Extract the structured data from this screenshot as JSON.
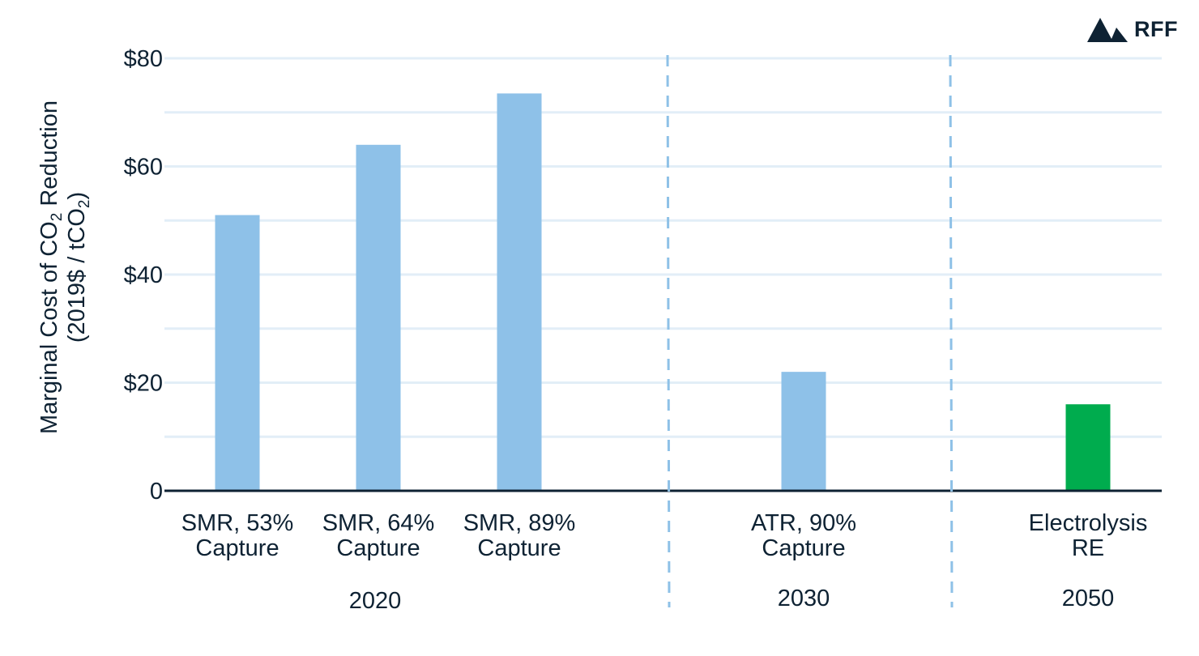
{
  "chart_data": {
    "type": "bar",
    "categories": [
      [
        "SMR, 53%",
        "Capture"
      ],
      [
        "SMR, 64%",
        "Capture"
      ],
      [
        "SMR, 89%",
        "Capture"
      ],
      [
        "ATR, 90%",
        "Capture"
      ],
      [
        "Electrolysis",
        "RE"
      ]
    ],
    "values": [
      51,
      64,
      73.5,
      22,
      16
    ],
    "bar_colors": [
      "#8ec1e8",
      "#8ec1e8",
      "#8ec1e8",
      "#8ec1e8",
      "#00ac4e"
    ],
    "groups": [
      {
        "label": "2020",
        "categories": [
          0,
          1,
          2
        ]
      },
      {
        "label": "2030",
        "categories": [
          3
        ]
      },
      {
        "label": "2050",
        "categories": [
          4
        ]
      }
    ],
    "ylabel_line1": [
      "Marginal Cost of CO",
      "2",
      " Reduction"
    ],
    "ylabel_line2": [
      "(2019$ / tCO",
      "2",
      ")"
    ],
    "ylim": [
      0,
      80
    ],
    "yticks": [
      0,
      20,
      40,
      60,
      80
    ],
    "ytick_labels": [
      "0",
      "$20",
      "$40",
      "$60",
      "$80"
    ],
    "grid": true,
    "grid_step": 10,
    "colors": {
      "bar": "#8ec1e8",
      "highlight": "#00ac4e",
      "grid": "#e2eef7",
      "axis": "#0e2233",
      "separator": "#8ec1e7"
    }
  },
  "logo": {
    "text": "RFF",
    "icon": "mountain-icon"
  }
}
